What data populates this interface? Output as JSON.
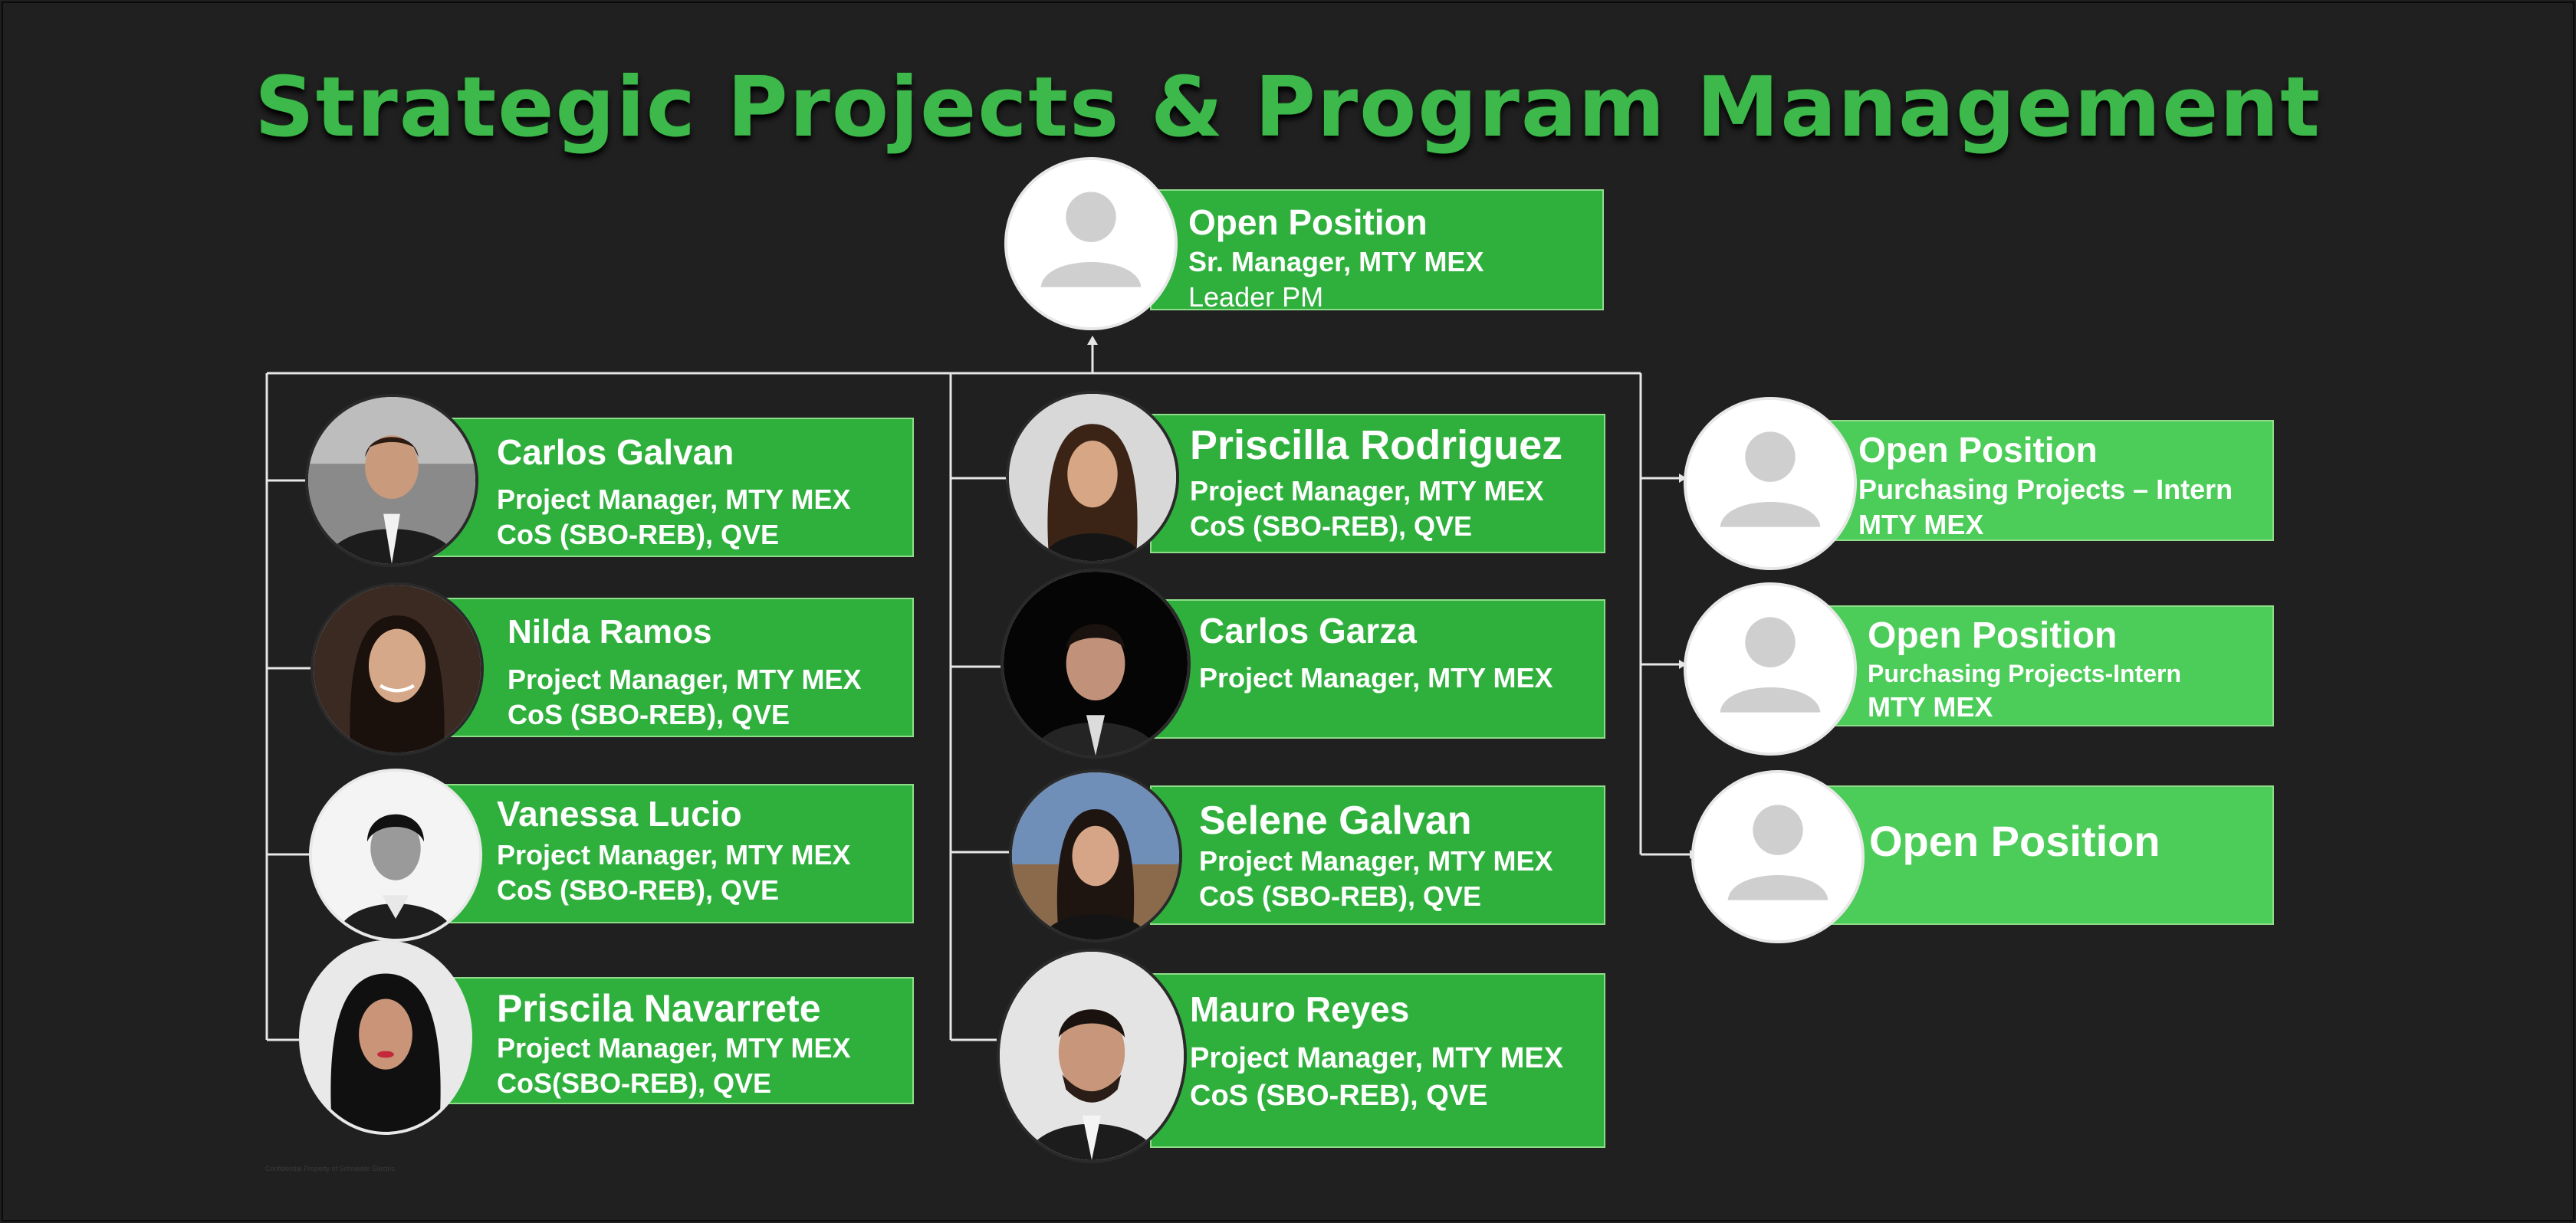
{
  "title": "Strategic Projects & Program Management",
  "colors": {
    "box": "#2fb03d",
    "box_light": "#4ccc58",
    "title": "#3db84a",
    "background": "#202020"
  },
  "top": {
    "name": "Open Position",
    "line1": "Sr. Manager, MTY MEX",
    "line2": "Leader PM"
  },
  "left": [
    {
      "name": "Carlos Galvan",
      "line1": "Project Manager, MTY MEX",
      "line2": "CoS (SBO-REB), QVE"
    },
    {
      "name": "Nilda Ramos",
      "line1": "Project Manager, MTY MEX",
      "line2": "CoS (SBO-REB), QVE"
    },
    {
      "name": "Vanessa Lucio",
      "line1": "Project Manager, MTY MEX",
      "line2": "CoS (SBO-REB), QVE"
    },
    {
      "name": "Priscila Navarrete",
      "line1": "Project Manager, MTY MEX",
      "line2": "CoS(SBO-REB), QVE"
    }
  ],
  "middle": [
    {
      "name": "Priscilla Rodriguez",
      "line1": "Project Manager, MTY MEX",
      "line2": "CoS (SBO-REB), QVE"
    },
    {
      "name": "Carlos Garza",
      "line1": "Project Manager, MTY MEX"
    },
    {
      "name": "Selene Galvan",
      "line1": "Project Manager, MTY MEX",
      "line2": "CoS (SBO-REB), QVE"
    },
    {
      "name": "Mauro Reyes",
      "line1": "Project Manager, MTY MEX",
      "line2": "CoS (SBO-REB), QVE"
    }
  ],
  "right": [
    {
      "name": "Open Position",
      "line1": "Purchasing Projects – Intern",
      "line2": "MTY MEX"
    },
    {
      "name": "Open Position",
      "line1": "Purchasing Projects-Intern",
      "line2": "MTY MEX"
    },
    {
      "name": "Open Position"
    }
  ],
  "footnote": "Confidential Property of Schneider Electric"
}
